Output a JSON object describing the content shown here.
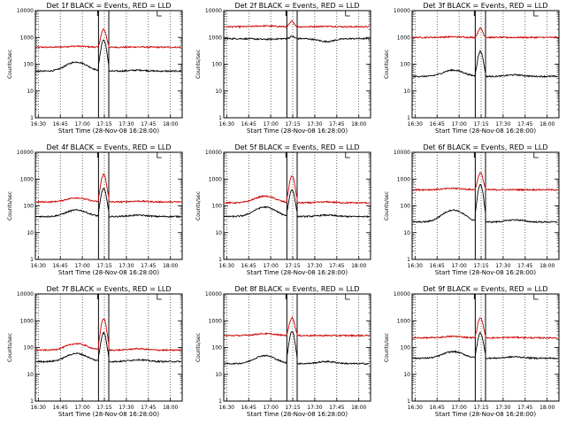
{
  "chart_data": {
    "type": "line",
    "ylabel": "Counts/sec",
    "xlabel": "Start Time (28-Nov-08 16:28:00)",
    "ylim": [
      1,
      10000
    ],
    "yscale": "log",
    "y_ticks": [
      "1",
      "10",
      "100",
      "1000",
      "10000"
    ],
    "x_ticks": [
      "16:30",
      "16:45",
      "17:00",
      "17:15",
      "17:30",
      "17:45",
      "18:00"
    ],
    "x_tick_minutes": [
      2,
      17,
      32,
      47,
      62,
      77,
      92
    ],
    "xlim_minutes": [
      0,
      100
    ],
    "vertical_markers_minutes": [
      43,
      50
    ],
    "grid": "vertical dotted at ticks",
    "series_colors": {
      "events": "#000000",
      "lld": "#cc0000"
    },
    "panels": [
      {
        "title": "Det 1f BLACK = Events, RED = LLD",
        "events": {
          "base": 55,
          "hump": 120,
          "peak": 800,
          "bump": 60
        },
        "lld": {
          "base": 430,
          "hump": 470,
          "peak": 2000,
          "bump": 440
        }
      },
      {
        "title": "Det 2f BLACK = Events, RED = LLD",
        "events": {
          "base": 900,
          "hump": 850,
          "peak": 1100,
          "bump": 700
        },
        "lld": {
          "base": 2500,
          "hump": 2700,
          "peak": 4000,
          "bump": 2600
        }
      },
      {
        "title": "Det 3f BLACK = Events, RED = LLD",
        "events": {
          "base": 35,
          "hump": 60,
          "peak": 300,
          "bump": 40
        },
        "lld": {
          "base": 1000,
          "hump": 1050,
          "peak": 2200,
          "bump": 1000
        }
      },
      {
        "title": "Det 4f BLACK = Events, RED = LLD",
        "events": {
          "base": 40,
          "hump": 70,
          "peak": 450,
          "bump": 45
        },
        "lld": {
          "base": 140,
          "hump": 200,
          "peak": 1500,
          "bump": 150
        }
      },
      {
        "title": "Det 5f BLACK = Events, RED = LLD",
        "events": {
          "base": 40,
          "hump": 90,
          "peak": 400,
          "bump": 45
        },
        "lld": {
          "base": 130,
          "hump": 230,
          "peak": 1300,
          "bump": 140
        }
      },
      {
        "title": "Det 6f BLACK = Events, RED = LLD",
        "events": {
          "base": 25,
          "hump": 70,
          "peak": 600,
          "bump": 30
        },
        "lld": {
          "base": 400,
          "hump": 450,
          "peak": 1700,
          "bump": 400
        }
      },
      {
        "title": "Det 7f BLACK = Events, RED = LLD",
        "events": {
          "base": 30,
          "hump": 60,
          "peak": 350,
          "bump": 35
        },
        "lld": {
          "base": 80,
          "hump": 140,
          "peak": 1200,
          "bump": 90
        }
      },
      {
        "title": "Det 8f BLACK = Events, RED = LLD",
        "events": {
          "base": 25,
          "hump": 50,
          "peak": 400,
          "bump": 30
        },
        "lld": {
          "base": 280,
          "hump": 330,
          "peak": 1300,
          "bump": 280
        }
      },
      {
        "title": "Det 9f BLACK = Events, RED = LLD",
        "events": {
          "base": 40,
          "hump": 70,
          "peak": 350,
          "bump": 45
        },
        "lld": {
          "base": 230,
          "hump": 260,
          "peak": 1300,
          "bump": 240
        }
      }
    ]
  }
}
